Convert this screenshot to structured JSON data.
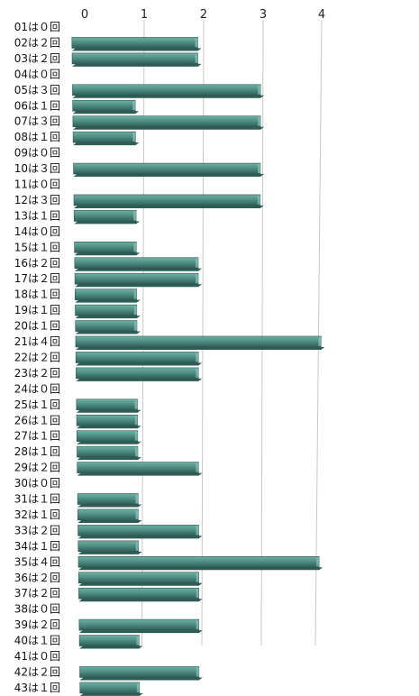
{
  "chart_data": {
    "type": "bar",
    "orientation": "horizontal",
    "title": "",
    "xlabel": "",
    "ylabel": "",
    "xlim": [
      0,
      4
    ],
    "x_ticks": [
      "0",
      "1",
      "2",
      "3",
      "4"
    ],
    "grid": true,
    "legend": "none",
    "bar_color": "#4f8f84",
    "bar_dark_color": "#2f5c55",
    "categories": [
      "01は０回",
      "02は２回",
      "03は２回",
      "04は０回",
      "05は３回",
      "06は１回",
      "07は３回",
      "08は１回",
      "09は０回",
      "10は３回",
      "11は０回",
      "12は３回",
      "13は１回",
      "14は０回",
      "15は１回",
      "16は２回",
      "17は２回",
      "18は１回",
      "19は１回",
      "20は１回",
      "21は４回",
      "22は２回",
      "23は２回",
      "24は０回",
      "25は１回",
      "26は１回",
      "27は１回",
      "28は１回",
      "29は２回",
      "30は０回",
      "31は１回",
      "32は１回",
      "33は２回",
      "34は１回",
      "35は４回",
      "36は２回",
      "37は２回",
      "38は０回",
      "39は２回",
      "40は１回",
      "41は０回",
      "42は２回",
      "43は１回"
    ],
    "values": [
      0,
      2,
      2,
      0,
      3,
      1,
      3,
      1,
      0,
      3,
      0,
      3,
      1,
      0,
      1,
      2,
      2,
      1,
      1,
      1,
      4,
      2,
      2,
      0,
      1,
      1,
      1,
      1,
      2,
      0,
      1,
      1,
      2,
      1,
      4,
      2,
      2,
      0,
      2,
      1,
      0,
      2,
      1
    ]
  }
}
